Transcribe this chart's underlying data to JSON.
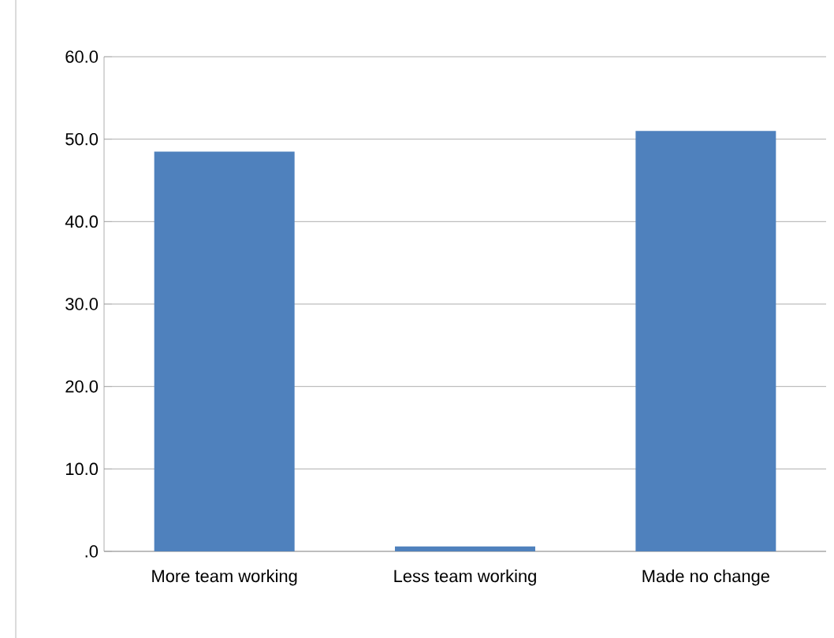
{
  "chart_data": {
    "type": "bar",
    "categories": [
      "More team working",
      "Less team working",
      "Made no change"
    ],
    "values": [
      48.5,
      0.6,
      51.0
    ],
    "color": "#4f81bd",
    "ylim": [
      0,
      60
    ],
    "yticks": [
      {
        "value": 0,
        "label": ".0"
      },
      {
        "value": 10,
        "label": "10.0"
      },
      {
        "value": 20,
        "label": "20.0"
      },
      {
        "value": 30,
        "label": "30.0"
      },
      {
        "value": 40,
        "label": "40.0"
      },
      {
        "value": 50,
        "label": "50.0"
      },
      {
        "value": 60,
        "label": "60.0"
      }
    ],
    "grid": "y"
  }
}
